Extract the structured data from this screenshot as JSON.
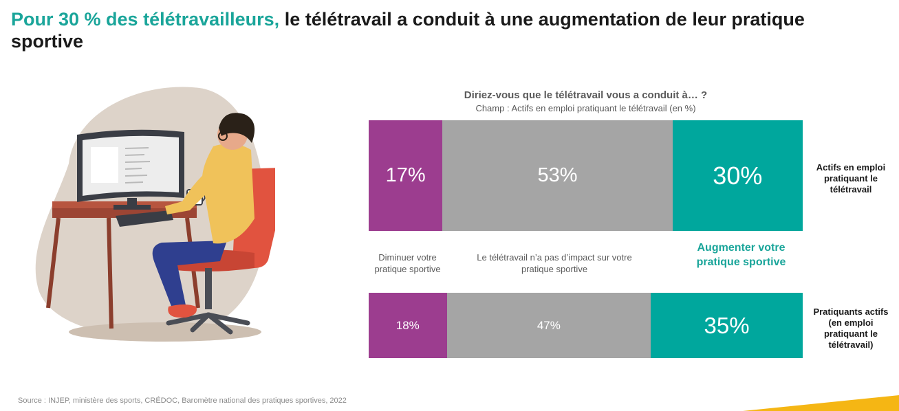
{
  "title": {
    "highlight": "Pour 30 % des télétravailleurs,",
    "rest": " le télétravail a conduit à une augmentation de leur pratique sportive"
  },
  "chart_data": {
    "type": "bar",
    "stacked": true,
    "orientation": "horizontal",
    "title": "Diriez-vous que le télétravail vous a conduit à… ?",
    "subtitle": "Champ : Actifs en emploi pratiquant le télétravail (en %)",
    "categories": [
      "Actifs en emploi pratiquant le télétravail",
      "Pratiquants actifs (en emploi pratiquant le télétravail)"
    ],
    "series": [
      {
        "name": "Diminuer votre pratique sportive",
        "color": "#9c3d8f",
        "values": [
          17,
          18
        ],
        "labels": [
          "17%",
          "18%"
        ]
      },
      {
        "name": "Le télétravail n’a pas d’impact sur votre pratique sportive",
        "color": "#a5a5a5",
        "values": [
          53,
          47
        ],
        "labels": [
          "53%",
          "47%"
        ]
      },
      {
        "name": "Augmenter votre pratique sportive",
        "color": "#00a79d",
        "values": [
          30,
          35
        ],
        "labels": [
          "30%",
          "35%"
        ]
      }
    ],
    "xlim": [
      0,
      100
    ]
  },
  "source": "Source : INJEP, ministère des sports, CRÉDOC, Baromètre national des pratiques sportives, 2022"
}
